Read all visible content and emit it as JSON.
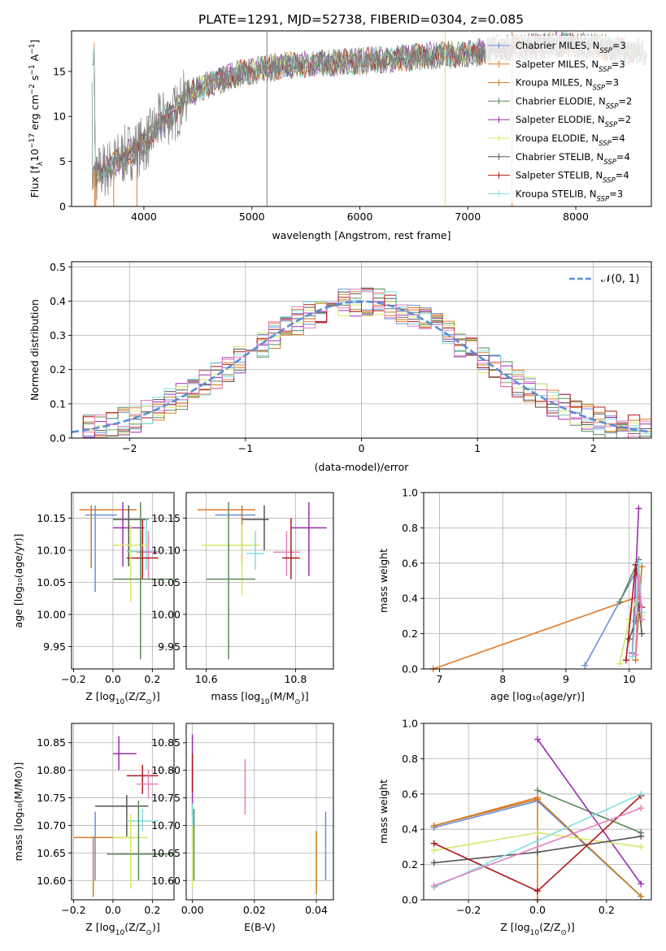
{
  "title": "PLATE=1291, MJD=52738, FIBERID=0304, z=0.085",
  "colors": {
    "Chabrier MILES": "#6a8fdc",
    "Salpeter MILES": "#e07b2a",
    "Kroupa MILES": "#cc7a1a",
    "Chabrier ELODIE": "#5a8a5a",
    "Salpeter ELODIE": "#9b2fb0",
    "Kroupa ELODIE": "#d6e86a",
    "Chabrier STELIB": "#555555",
    "Salpeter STELIB": "#b01818",
    "Kroupa STELIB": "#80dede",
    "pink": "#e67fc0",
    "data": "#808080",
    "gauss": "#5b8fd6"
  },
  "chart_data": [
    {
      "type": "line",
      "panel": "spectrum",
      "xlabel": "wavelength [Angstrom, rest frame]",
      "ylabel_main": "Flux [f",
      "ylabel_sub1": "λ",
      "ylabel_mid": "10",
      "ylabel_sup1": "−17",
      "ylabel_mid2": " erg cm",
      "ylabel_sup2": "−2",
      "ylabel_mid3": " s",
      "ylabel_sup3": "−1",
      "ylabel_end": " A",
      "ylabel_sup4": "−1",
      "ylabel_close": "]",
      "xlim": [
        3330,
        8700
      ],
      "ylim": [
        0,
        19.5
      ],
      "xticks": [
        "4000",
        "5000",
        "6000",
        "7000",
        "8000"
      ],
      "yticks": [
        "0",
        "5",
        "10",
        "15"
      ],
      "legend": [
        {
          "base": "Chabrier MILES, N",
          "sub": "SSP",
          "tail": "=3"
        },
        {
          "base": "Salpeter MILES, N",
          "sub": "SSP",
          "tail": "=3"
        },
        {
          "base": "Kroupa MILES, N",
          "sub": "SSP",
          "tail": "=3"
        },
        {
          "base": "Chabrier ELODIE, N",
          "sub": "SSP",
          "tail": "=2"
        },
        {
          "base": "Salpeter ELODIE, N",
          "sub": "SSP",
          "tail": "=2"
        },
        {
          "base": "Kroupa ELODIE, N",
          "sub": "SSP",
          "tail": "=4"
        },
        {
          "base": "Chabrier STELIB, N",
          "sub": "SSP",
          "tail": "=4"
        },
        {
          "base": "Salpeter STELIB, N",
          "sub": "SSP",
          "tail": "=4"
        },
        {
          "base": "Kroupa STELIB, N",
          "sub": "SSP",
          "tail": "=3"
        }
      ],
      "continuum": {
        "wave": [
          3550,
          3700,
          3850,
          3950,
          4050,
          4150,
          4300,
          4400,
          4600,
          4800,
          5000,
          5200,
          5500,
          5800,
          6100,
          6400,
          6700,
          7000,
          7300,
          7600,
          7900,
          8100,
          8300,
          8500
        ],
        "flux": [
          3.5,
          4.5,
          6.0,
          6.5,
          7.5,
          9.5,
          10.5,
          12.5,
          13.5,
          14.5,
          15.0,
          15.5,
          15.8,
          16.0,
          16.2,
          16.5,
          16.8,
          17.0,
          17.5,
          17.8,
          18.0,
          17.8,
          17.6,
          17.2
        ]
      }
    },
    {
      "type": "histogram",
      "panel": "residuals",
      "xlabel": "(data-model)/error",
      "ylabel": "Normed distribution",
      "xlim": [
        -2.5,
        2.5
      ],
      "ylim": [
        0,
        0.515
      ],
      "xticks": [
        "−2",
        "−1",
        "0",
        "1",
        "2"
      ],
      "yticks": [
        "0.0",
        "0.1",
        "0.2",
        "0.3",
        "0.4",
        "0.5"
      ],
      "legend": "𝒩(0, 1)",
      "bin_width": 0.1
    },
    {
      "type": "scatter",
      "panel": "age-vs-Z",
      "xlabel_base": "Z [log",
      "xlabel_sub": "10",
      "xlabel_tail": "(Z/Z",
      "xlabel_sub2": "⊙",
      "xlabel_end": ")]",
      "ylabel": "age  [log₁₀(age/yr)]",
      "xlim": [
        -0.21,
        0.31
      ],
      "ylim": [
        9.915,
        10.19
      ],
      "xticks": [
        "−0.2",
        "0.0",
        "0.2"
      ],
      "yticks": [
        "9.95",
        "10.00",
        "10.05",
        "10.10",
        "10.15"
      ],
      "points": [
        {
          "s": "Salpeter MILES",
          "x": -0.12,
          "xl": -0.17,
          "xh": 0.12,
          "y": 10.163,
          "yl": 10.163,
          "yh": 10.163
        },
        {
          "s": "Chabrier MILES",
          "x": -0.09,
          "xl": -0.14,
          "xh": 0.02,
          "y": 10.155,
          "yl": 10.035,
          "yh": 10.17
        },
        {
          "s": "Kroupa MILES",
          "x": -0.11,
          "xl": -0.11,
          "xh": -0.11,
          "y": 10.155,
          "yl": 10.072,
          "yh": 10.17
        },
        {
          "s": "Chabrier STELIB",
          "x": 0.08,
          "xl": 0.0,
          "xh": 0.18,
          "y": 10.148,
          "yl": 10.075,
          "yh": 10.17
        },
        {
          "s": "Salpeter ELODIE",
          "x": 0.05,
          "xl": 0.0,
          "xh": 0.16,
          "y": 10.135,
          "yl": 10.075,
          "yh": 10.175
        },
        {
          "s": "Kroupa STELIB",
          "x": 0.17,
          "xl": 0.07,
          "xh": 0.23,
          "y": 10.098,
          "yl": 10.07,
          "yh": 10.15
        },
        {
          "s": "pink",
          "x": 0.18,
          "xl": 0.12,
          "xh": 0.23,
          "y": 10.097,
          "yl": 10.055,
          "yh": 10.13
        },
        {
          "s": "Salpeter STELIB",
          "x": 0.15,
          "xl": 0.07,
          "xh": 0.23,
          "y": 10.088,
          "yl": 10.055,
          "yh": 10.148
        },
        {
          "s": "Kroupa ELODIE",
          "x": 0.09,
          "xl": 0.0,
          "xh": 0.18,
          "y": 10.108,
          "yl": 10.02,
          "yh": 10.14
        },
        {
          "s": "Chabrier ELODIE",
          "x": 0.14,
          "xl": 0.0,
          "xh": 0.3,
          "y": 10.055,
          "yl": 9.93,
          "yh": 10.175
        }
      ]
    },
    {
      "type": "scatter",
      "panel": "age-vs-mass",
      "xlabel_base": "mass [log",
      "xlabel_sub": "10",
      "xlabel_tail": "(M/M",
      "xlabel_sub2": "⊙",
      "xlabel_end": ")]",
      "xlim": [
        10.555,
        10.885
      ],
      "ylim": [
        9.915,
        10.19
      ],
      "xticks": [
        "10.6",
        "10.8"
      ],
      "yticks": [
        "9.95",
        "10.00",
        "10.05",
        "10.10",
        "10.15"
      ],
      "points": [
        {
          "s": "Salpeter MILES",
          "x": 10.68,
          "xl": 10.58,
          "xh": 10.71,
          "y": 10.163,
          "yl": 10.163,
          "yh": 10.163
        },
        {
          "s": "Chabrier MILES",
          "x": 10.66,
          "xl": 10.62,
          "xh": 10.71,
          "y": 10.155,
          "yl": 10.155,
          "yh": 10.155
        },
        {
          "s": "Kroupa MILES",
          "x": 10.68,
          "xl": 10.68,
          "xh": 10.68,
          "y": 10.155,
          "yl": 10.08,
          "yh": 10.17
        },
        {
          "s": "Chabrier STELIB",
          "x": 10.73,
          "xl": 10.68,
          "xh": 10.74,
          "y": 10.148,
          "yl": 10.1,
          "yh": 10.17
        },
        {
          "s": "Salpeter ELODIE",
          "x": 10.83,
          "xl": 10.79,
          "xh": 10.87,
          "y": 10.135,
          "yl": 10.06,
          "yh": 10.175
        },
        {
          "s": "Kroupa ELODIE",
          "x": 10.68,
          "xl": 10.59,
          "xh": 10.72,
          "y": 10.108,
          "yl": 10.03,
          "yh": 10.14
        },
        {
          "s": "Kroupa STELIB",
          "x": 10.71,
          "xl": 10.69,
          "xh": 10.73,
          "y": 10.095,
          "yl": 10.07,
          "yh": 10.13
        },
        {
          "s": "pink",
          "x": 10.78,
          "xl": 10.75,
          "xh": 10.81,
          "y": 10.097,
          "yl": 10.06,
          "yh": 10.13
        },
        {
          "s": "Salpeter STELIB",
          "x": 10.79,
          "xl": 10.77,
          "xh": 10.81,
          "y": 10.088,
          "yl": 10.055,
          "yh": 10.15
        },
        {
          "s": "Chabrier ELODIE",
          "x": 10.65,
          "xl": 10.6,
          "xh": 10.71,
          "y": 10.055,
          "yl": 9.93,
          "yh": 10.175
        }
      ]
    },
    {
      "type": "line",
      "panel": "weight-vs-age",
      "xlabel": "age  [log₁₀(age/yr)]",
      "ylabel": "mass weight",
      "xlim": [
        6.75,
        10.35
      ],
      "ylim": [
        0,
        1.0
      ],
      "xticks": [
        "7",
        "8",
        "9",
        "10"
      ],
      "yticks": [
        "0.0",
        "0.2",
        "0.4",
        "0.6",
        "0.8",
        "1.0"
      ],
      "series": [
        {
          "s": "Salpeter MILES",
          "x": [
            6.9,
            10.15
          ],
          "y": [
            0.0,
            0.41
          ]
        },
        {
          "s": "Chabrier MILES",
          "x": [
            9.3,
            10.15
          ],
          "y": [
            0.02,
            0.58
          ]
        },
        {
          "s": "Kroupa MILES",
          "x": [
            10.1,
            10.2
          ],
          "y": [
            0.05,
            0.58
          ]
        },
        {
          "s": "Chabrier ELODIE",
          "x": [
            9.85,
            10.15
          ],
          "y": [
            0.38,
            0.62
          ]
        },
        {
          "s": "Salpeter ELODIE",
          "x": [
            10.05,
            10.15
          ],
          "y": [
            0.09,
            0.91
          ]
        },
        {
          "s": "Kroupa ELODIE",
          "x": [
            9.85,
            10.0,
            10.1,
            10.2
          ],
          "y": [
            0.03,
            0.28,
            0.38,
            0.3
          ]
        },
        {
          "s": "Chabrier STELIB",
          "x": [
            10.0,
            10.1,
            10.15,
            10.2
          ],
          "y": [
            0.17,
            0.27,
            0.36,
            0.2
          ]
        },
        {
          "s": "Salpeter STELIB",
          "x": [
            9.95,
            10.1,
            10.2
          ],
          "y": [
            0.05,
            0.59,
            0.35
          ]
        },
        {
          "s": "Kroupa STELIB",
          "x": [
            10.05,
            10.15,
            10.2
          ],
          "y": [
            0.07,
            0.6,
            0.32
          ]
        },
        {
          "s": "pink",
          "x": [
            10.1,
            10.15,
            10.2
          ],
          "y": [
            0.08,
            0.52,
            0.28
          ]
        }
      ]
    },
    {
      "type": "scatter",
      "panel": "mass-vs-Z",
      "xlabel_base": "Z [log",
      "xlabel_sub": "10",
      "xlabel_tail": "(Z/Z",
      "xlabel_sub2": "⊙",
      "xlabel_end": ")]",
      "ylabel": "mass [log₁₀(M/M⊙)]",
      "xlim": [
        -0.21,
        0.31
      ],
      "ylim": [
        10.565,
        10.885
      ],
      "xticks": [
        "−0.2",
        "0.0",
        "0.2"
      ],
      "yticks": [
        "10.60",
        "10.65",
        "10.70",
        "10.75",
        "10.80",
        "10.85"
      ],
      "points": [
        {
          "s": "Salpeter ELODIE",
          "x": 0.03,
          "xl": 0.0,
          "xh": 0.12,
          "y": 10.83,
          "yl": 10.8,
          "yh": 10.862
        },
        {
          "s": "Salpeter STELIB",
          "x": 0.15,
          "xl": 0.07,
          "xh": 0.23,
          "y": 10.79,
          "yl": 10.757,
          "yh": 10.81
        },
        {
          "s": "pink",
          "x": 0.18,
          "xl": 0.12,
          "xh": 0.23,
          "y": 10.775,
          "yl": 10.75,
          "yh": 10.8
        },
        {
          "s": "Chabrier STELIB",
          "x": 0.07,
          "xl": -0.09,
          "xh": 0.18,
          "y": 10.735,
          "yl": 10.68,
          "yh": 10.755
        },
        {
          "s": "Kroupa STELIB",
          "x": 0.15,
          "xl": 0.07,
          "xh": 0.23,
          "y": 10.708,
          "yl": 10.69,
          "yh": 10.73
        },
        {
          "s": "Salpeter MILES",
          "x": -0.08,
          "xl": -0.2,
          "xh": 0.12,
          "y": 10.678,
          "yl": 10.678,
          "yh": 10.678
        },
        {
          "s": "Kroupa MILES",
          "x": -0.1,
          "xl": -0.1,
          "xh": -0.1,
          "y": 10.68,
          "yl": 10.57,
          "yh": 10.68
        },
        {
          "s": "Chabrier MILES",
          "x": -0.09,
          "xl": -0.09,
          "xh": -0.09,
          "y": 10.68,
          "yl": 10.6,
          "yh": 10.725
        },
        {
          "s": "Kroupa ELODIE",
          "x": 0.09,
          "xl": 0.0,
          "xh": 0.18,
          "y": 10.678,
          "yl": 10.585,
          "yh": 10.72
        },
        {
          "s": "Chabrier ELODIE",
          "x": 0.13,
          "xl": -0.03,
          "xh": 0.3,
          "y": 10.648,
          "yl": 10.6,
          "yh": 10.745
        }
      ]
    },
    {
      "type": "scatter",
      "panel": "mass-vs-EBV",
      "xlabel": "E(B-V)",
      "xlim": [
        -0.002,
        0.0455
      ],
      "ylim": [
        10.565,
        10.885
      ],
      "xticks": [
        "0.00",
        "0.02",
        "0.04"
      ],
      "yticks": [
        "10.60",
        "10.65",
        "10.70",
        "10.75",
        "10.80",
        "10.85"
      ],
      "points": [
        {
          "s": "Salpeter ELODIE",
          "x": 0.0,
          "yl": 10.72,
          "yh": 10.865
        },
        {
          "s": "Salpeter STELIB",
          "x": 0.0,
          "yl": 10.76,
          "yh": 10.83
        },
        {
          "s": "Kroupa STELIB",
          "x": 0.0,
          "yl": 10.66,
          "yh": 10.74
        },
        {
          "s": "Chabrier ELODIE",
          "x": 0.0005,
          "yl": 10.6,
          "yh": 10.73
        },
        {
          "s": "Kroupa ELODIE",
          "x": 0.0,
          "yl": 10.585,
          "yh": 10.7
        },
        {
          "s": "pink",
          "x": 0.017,
          "yl": 10.72,
          "yh": 10.82
        },
        {
          "s": "Kroupa MILES",
          "x": 0.04,
          "yl": 10.575,
          "yh": 10.69
        },
        {
          "s": "Chabrier MILES",
          "x": 0.043,
          "yl": 10.6,
          "yh": 10.725
        }
      ]
    },
    {
      "type": "line",
      "panel": "weight-vs-Z",
      "xlabel_base": "Z [log",
      "xlabel_sub": "10",
      "xlabel_tail": "(Z/Z",
      "xlabel_sub2": "⊙",
      "xlabel_end": ")]",
      "ylabel": "mass weight",
      "xlim": [
        -0.33,
        0.33
      ],
      "ylim": [
        0,
        1.0
      ],
      "xticks": [
        "−0.2",
        "0.0",
        "0.2"
      ],
      "yticks": [
        "0.0",
        "0.2",
        "0.4",
        "0.6",
        "0.8",
        "1.0"
      ],
      "series": [
        {
          "s": "Salpeter MILES",
          "x": [
            -0.3,
            0.0,
            0.0
          ],
          "y": [
            0.42,
            0.58,
            0.0
          ]
        },
        {
          "s": "Chabrier MILES",
          "x": [
            -0.3,
            0.0,
            0.3
          ],
          "y": [
            0.41,
            0.56,
            0.02
          ]
        },
        {
          "s": "Kroupa MILES",
          "x": [
            -0.3,
            0.0,
            0.3
          ],
          "y": [
            0.42,
            0.57,
            0.02
          ]
        },
        {
          "s": "Chabrier ELODIE",
          "x": [
            0.0,
            0.3
          ],
          "y": [
            0.62,
            0.38
          ]
        },
        {
          "s": "Salpeter ELODIE",
          "x": [
            0.0,
            0.3
          ],
          "y": [
            0.91,
            0.09
          ]
        },
        {
          "s": "Kroupa ELODIE",
          "x": [
            -0.3,
            0.0,
            0.3
          ],
          "y": [
            0.28,
            0.38,
            0.3
          ]
        },
        {
          "s": "Chabrier STELIB",
          "x": [
            -0.3,
            0.0,
            0.3
          ],
          "y": [
            0.21,
            0.27,
            0.36
          ]
        },
        {
          "s": "Salpeter STELIB",
          "x": [
            -0.3,
            0.0,
            0.3
          ],
          "y": [
            0.32,
            0.05,
            0.59
          ]
        },
        {
          "s": "Kroupa STELIB",
          "x": [
            -0.3,
            0.3
          ],
          "y": [
            0.07,
            0.6
          ]
        },
        {
          "s": "pink",
          "x": [
            -0.3,
            0.3
          ],
          "y": [
            0.08,
            0.52
          ]
        }
      ]
    }
  ]
}
